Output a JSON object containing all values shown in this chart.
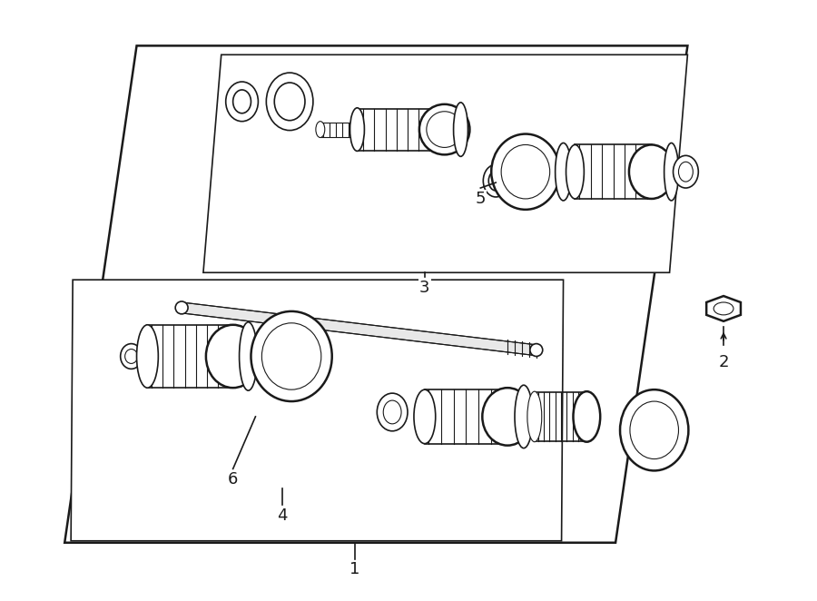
{
  "bg_color": "#ffffff",
  "line_color": "#1a1a1a",
  "figure_width": 9.0,
  "figure_height": 6.62,
  "dpi": 100
}
